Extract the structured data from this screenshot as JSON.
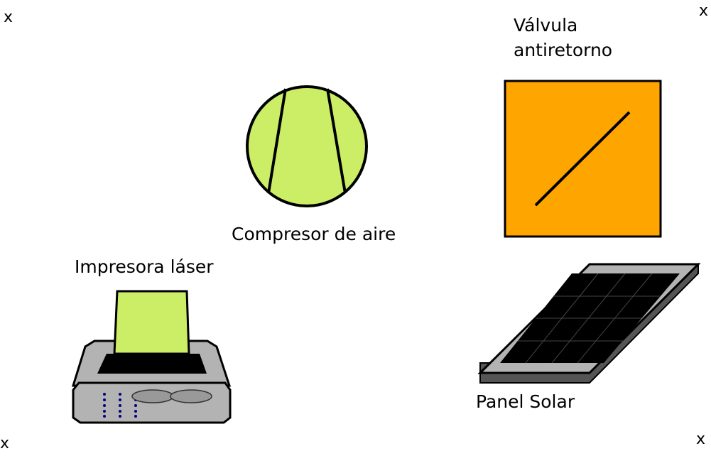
{
  "corner_marks": {
    "top_left": "x",
    "top_right": "x",
    "bottom_left": "x",
    "bottom_right": "x"
  },
  "components": {
    "compressor": {
      "label": "Compresor de aire",
      "icon": "air-compressor-icon",
      "fill": "#ccee66"
    },
    "valve": {
      "label_line1": "Válvula",
      "label_line2": "antiretorno",
      "icon": "check-valve-icon",
      "fill": "#ffa500"
    },
    "printer": {
      "label": "Impresora láser",
      "icon": "laser-printer-icon",
      "paper_fill": "#ccee66",
      "body_fill": "#b3b3b3"
    },
    "solar": {
      "label": "Panel Solar",
      "icon": "solar-panel-icon",
      "frame_fill": "#b3b3b3"
    }
  }
}
